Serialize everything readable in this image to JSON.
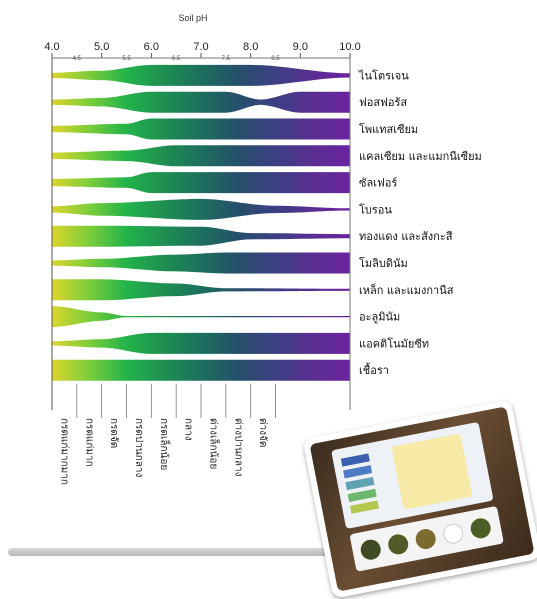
{
  "chart_data": {
    "type": "area",
    "title": "Soil pH",
    "xlim": [
      4.0,
      10.0
    ],
    "major_ticks": [
      "4.0",
      "5.0",
      "6.0",
      "7.0",
      "8.0",
      "9.0",
      "10.0"
    ],
    "minor_ticks": [
      "4.5",
      "5.5",
      "6.5",
      "7.5",
      "8.5"
    ],
    "nutrients": [
      {
        "name": "ไนโตรเจน",
        "x": [
          4.0,
          5.0,
          6.0,
          8.0,
          10.0
        ],
        "w": [
          0.25,
          0.45,
          1.0,
          1.0,
          0.2
        ]
      },
      {
        "name": "ฟอสฟอรัส",
        "x": [
          4.0,
          5.0,
          6.0,
          7.5,
          8.2,
          9.0,
          10.0
        ],
        "w": [
          0.25,
          0.4,
          1.0,
          1.0,
          0.25,
          1.0,
          1.0
        ]
      },
      {
        "name": "โพแทสเซียม",
        "x": [
          4.0,
          5.5,
          6.0,
          10.0
        ],
        "w": [
          0.3,
          0.5,
          1.0,
          1.0
        ]
      },
      {
        "name": "แคลเซียม และแมกนีเซียม",
        "x": [
          4.0,
          5.5,
          6.5,
          10.0
        ],
        "w": [
          0.3,
          0.5,
          1.0,
          1.0
        ]
      },
      {
        "name": "ซัลเฟอร์",
        "x": [
          4.0,
          5.5,
          6.0,
          10.0
        ],
        "w": [
          0.35,
          0.5,
          1.0,
          1.0
        ]
      },
      {
        "name": "โบรอน",
        "x": [
          4.0,
          5.0,
          7.0,
          8.5,
          10.0
        ],
        "w": [
          0.3,
          0.6,
          1.0,
          0.35,
          0.1
        ]
      },
      {
        "name": "ทองแดง และสังกะสี",
        "x": [
          4.0,
          5.0,
          7.0,
          8.0,
          10.0
        ],
        "w": [
          1.0,
          1.0,
          0.9,
          0.3,
          0.2
        ]
      },
      {
        "name": "โมลิบดินัม",
        "x": [
          4.0,
          5.0,
          6.5,
          7.5,
          10.0
        ],
        "w": [
          0.25,
          0.4,
          0.8,
          1.0,
          1.0
        ]
      },
      {
        "name": "เหล็ก และแมงกานีส",
        "x": [
          4.0,
          5.0,
          6.5,
          7.5,
          10.0
        ],
        "w": [
          1.0,
          1.0,
          0.6,
          0.15,
          0.1
        ]
      },
      {
        "name": "อะลูมินัม",
        "x": [
          4.0,
          5.0,
          5.5,
          10.0
        ],
        "w": [
          1.0,
          0.4,
          0.05,
          0.02
        ]
      },
      {
        "name": "แอคติโนมัยซีท",
        "x": [
          4.0,
          5.0,
          6.0,
          10.0
        ],
        "w": [
          0.2,
          0.4,
          1.0,
          1.0
        ]
      },
      {
        "name": "เชื้อรา",
        "x": [
          4.0,
          10.0
        ],
        "w": [
          1.0,
          1.0
        ]
      }
    ],
    "acidity_labels": [
      "กรดแก่มากมาก",
      "กรดแก่มาก",
      "กรดจัด",
      "กรดปานกลาง",
      "กรดเล็กน้อย",
      "กลาง",
      "ด่างเล็กน้อย",
      "ด่างปานกลาง",
      "ด่างจัด"
    ],
    "gradient_colors": [
      "#dcd52c",
      "#7ccd3a",
      "#22b34a",
      "#1f8f52",
      "#1d6f5e",
      "#254f6a",
      "#3c3f83",
      "#5a2e92",
      "#6a23a0"
    ]
  }
}
